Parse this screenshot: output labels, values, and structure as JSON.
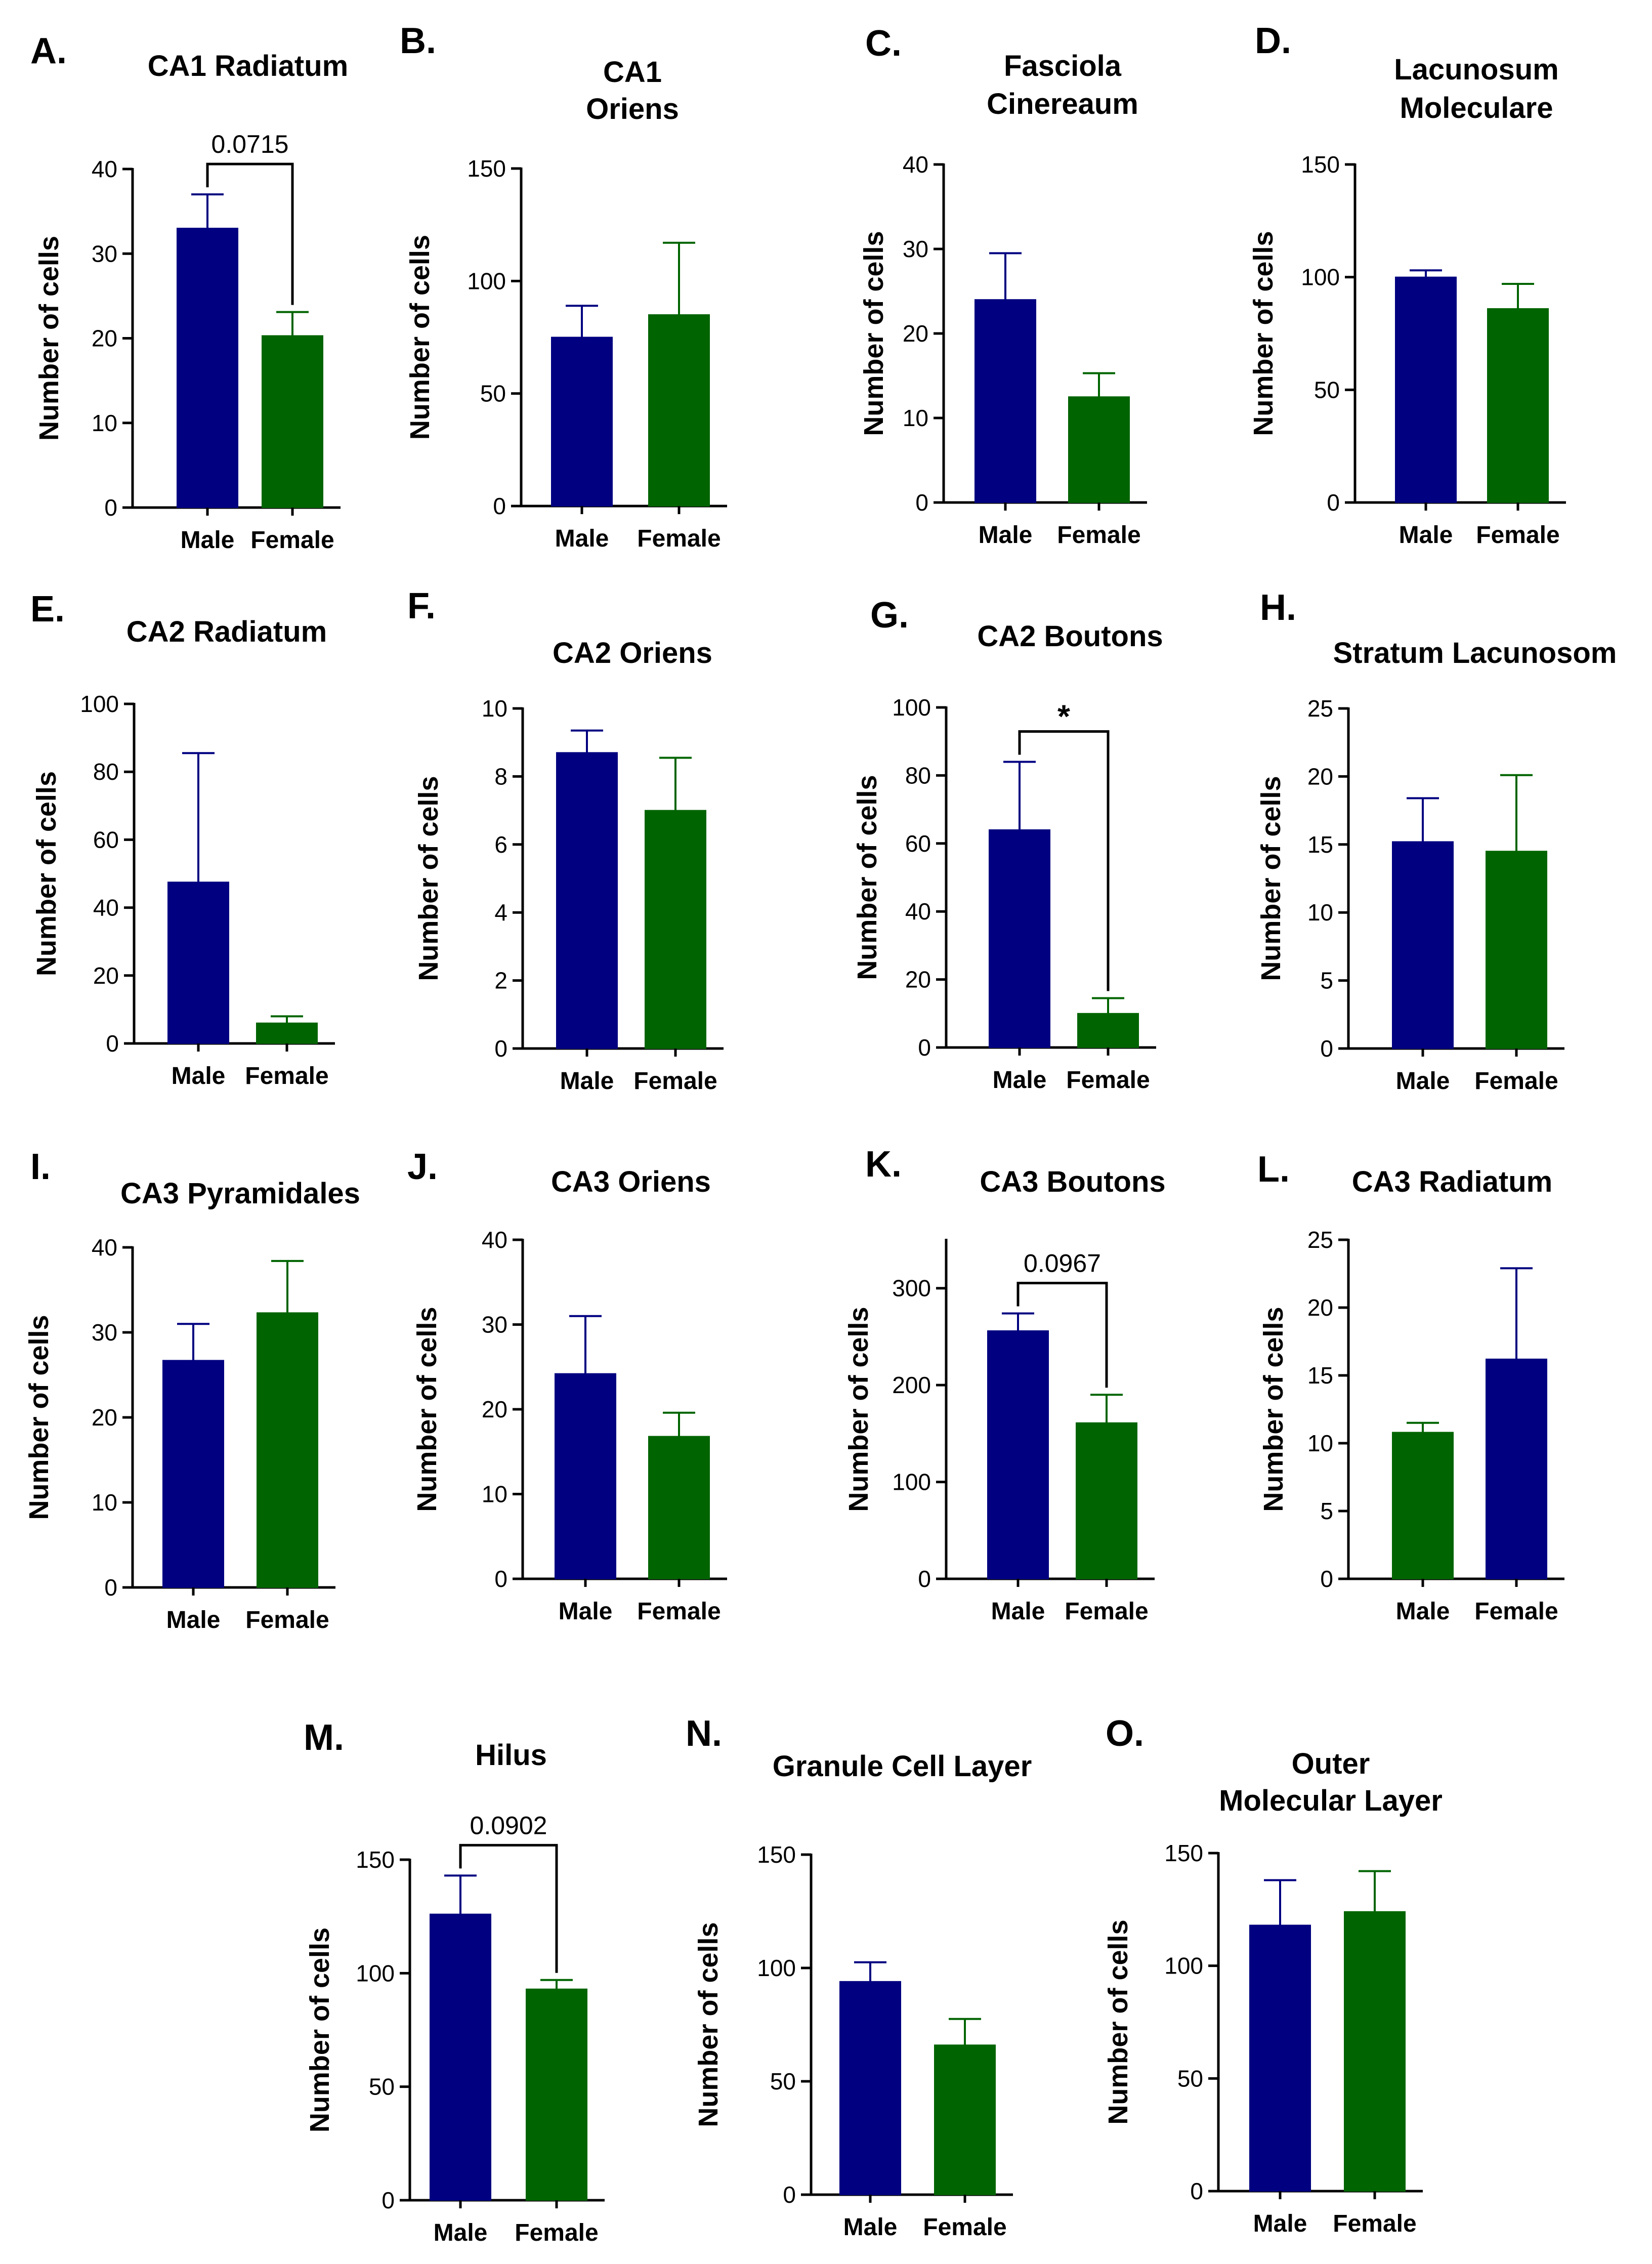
{
  "colors": {
    "male": "#000080",
    "female": "#006400",
    "axis": "#000000"
  },
  "chart_data": [
    {
      "panel": "A.",
      "title": [
        "CA1 Radiatum"
      ],
      "type": "bar",
      "ylabel": "Number of cells",
      "categories": [
        "Male",
        "Female"
      ],
      "values": [
        33,
        20.3
      ],
      "errors": [
        4,
        2.8
      ],
      "bar_colors": [
        "male",
        "female"
      ],
      "ylim": [
        0,
        40
      ],
      "yticks": [
        0,
        10,
        20,
        30,
        40
      ],
      "bracket": "0.0715"
    },
    {
      "panel": "B.",
      "title": [
        "CA1",
        "Oriens"
      ],
      "type": "bar",
      "ylabel": "Number of cells",
      "categories": [
        "Male",
        "Female"
      ],
      "values": [
        75,
        85
      ],
      "errors": [
        14,
        32
      ],
      "bar_colors": [
        "male",
        "female"
      ],
      "ylim": [
        0,
        150
      ],
      "yticks": [
        0,
        50,
        100,
        150
      ]
    },
    {
      "panel": "C.",
      "title": [
        "Fasciola",
        "Cinereaum"
      ],
      "type": "bar",
      "ylabel": "Number of cells",
      "categories": [
        "Male",
        "Female"
      ],
      "values": [
        24,
        12.5
      ],
      "errors": [
        5.5,
        2.8
      ],
      "bar_colors": [
        "male",
        "female"
      ],
      "ylim": [
        0,
        40
      ],
      "yticks": [
        0,
        10,
        20,
        30,
        40
      ]
    },
    {
      "panel": "D.",
      "title": [
        "Lacunosum",
        "Moleculare"
      ],
      "type": "bar",
      "ylabel": "Number of cells",
      "categories": [
        "Male",
        "Female"
      ],
      "values": [
        100,
        86
      ],
      "errors": [
        3,
        11
      ],
      "bar_colors": [
        "male",
        "female"
      ],
      "ylim": [
        0,
        150
      ],
      "yticks": [
        0,
        50,
        100,
        150
      ]
    },
    {
      "panel": "E.",
      "title": [
        "CA2 Radiatum"
      ],
      "type": "bar",
      "ylabel": "Number of cells",
      "categories": [
        "Male",
        "Female"
      ],
      "values": [
        47.5,
        6
      ],
      "errors": [
        38,
        2
      ],
      "bar_colors": [
        "male",
        "female"
      ],
      "ylim": [
        0,
        100
      ],
      "yticks": [
        0,
        20,
        40,
        60,
        80,
        100
      ]
    },
    {
      "panel": "F.",
      "title": [
        "CA2 Oriens"
      ],
      "type": "bar",
      "ylabel": "Number of cells",
      "categories": [
        "Male",
        "Female"
      ],
      "values": [
        8.7,
        7
      ],
      "errors": [
        0.65,
        1.55
      ],
      "bar_colors": [
        "male",
        "female"
      ],
      "ylim": [
        0,
        10
      ],
      "yticks": [
        0,
        2,
        4,
        6,
        8,
        10
      ]
    },
    {
      "panel": "G.",
      "title": [
        "CA2 Boutons"
      ],
      "type": "bar",
      "ylabel": "Number of cells",
      "categories": [
        "Male",
        "Female"
      ],
      "values": [
        64,
        10
      ],
      "errors": [
        20,
        4.5
      ],
      "bar_colors": [
        "male",
        "female"
      ],
      "ylim": [
        0,
        100
      ],
      "yticks": [
        0,
        20,
        40,
        60,
        80,
        100
      ],
      "bracket": "*"
    },
    {
      "panel": "H.",
      "title": [
        "Stratum Lacunosom"
      ],
      "type": "bar",
      "ylabel": "Number of cells",
      "categories": [
        "Male",
        "Female"
      ],
      "values": [
        15.2,
        14.5
      ],
      "errors": [
        3.2,
        5.6
      ],
      "bar_colors": [
        "male",
        "female"
      ],
      "ylim": [
        0,
        25
      ],
      "yticks": [
        0,
        5,
        10,
        15,
        20,
        25
      ]
    },
    {
      "panel": "I.",
      "title": [
        "CA3 Pyramidales"
      ],
      "type": "bar",
      "ylabel": "Number of cells",
      "categories": [
        "Male",
        "Female"
      ],
      "values": [
        26.7,
        32.3
      ],
      "errors": [
        4.3,
        6.1
      ],
      "bar_colors": [
        "male",
        "female"
      ],
      "ylim": [
        0,
        40
      ],
      "yticks": [
        0,
        10,
        20,
        30,
        40
      ]
    },
    {
      "panel": "J.",
      "title": [
        "CA3 Oriens"
      ],
      "type": "bar",
      "ylabel": "Number of cells",
      "categories": [
        "Male",
        "Female"
      ],
      "values": [
        24.2,
        16.8
      ],
      "errors": [
        6.8,
        2.8
      ],
      "bar_colors": [
        "male",
        "female"
      ],
      "ylim": [
        0,
        40
      ],
      "yticks": [
        0,
        10,
        20,
        30,
        40
      ]
    },
    {
      "panel": "K.",
      "title": [
        "CA3 Boutons"
      ],
      "type": "bar",
      "ylabel": "Number of cells",
      "categories": [
        "Male",
        "Female"
      ],
      "values": [
        256,
        161
      ],
      "errors": [
        18,
        29
      ],
      "bar_colors": [
        "male",
        "female"
      ],
      "ylim": [
        0,
        350
      ],
      "yticks": [
        0,
        100,
        200,
        300
      ],
      "bracket": "0.0967"
    },
    {
      "panel": "L.",
      "title": [
        "CA3 Radiatum"
      ],
      "type": "bar",
      "ylabel": "Number of cells",
      "categories": [
        "Male",
        "Female"
      ],
      "values": [
        10.8,
        16.2
      ],
      "errors": [
        0.7,
        6.7
      ],
      "bar_colors": [
        "female",
        "male"
      ],
      "ylim": [
        0,
        25
      ],
      "yticks": [
        0,
        5,
        10,
        15,
        20,
        25
      ]
    },
    {
      "panel": "M.",
      "title": [
        "Hilus"
      ],
      "type": "bar",
      "ylabel": "Number of cells",
      "categories": [
        "Male",
        "Female"
      ],
      "values": [
        126,
        93
      ],
      "errors": [
        17,
        4
      ],
      "bar_colors": [
        "male",
        "female"
      ],
      "ylim": [
        0,
        150
      ],
      "yticks": [
        0,
        50,
        100,
        150
      ],
      "bracket": "0.0902"
    },
    {
      "panel": "N.",
      "title": [
        "Granule Cell Layer"
      ],
      "type": "bar",
      "ylabel": "Number of cells",
      "categories": [
        "Male",
        "Female"
      ],
      "values": [
        94,
        66
      ],
      "errors": [
        8.5,
        11.5
      ],
      "bar_colors": [
        "male",
        "female"
      ],
      "ylim": [
        0,
        150
      ],
      "yticks": [
        0,
        50,
        100,
        150
      ]
    },
    {
      "panel": "O.",
      "title": [
        "Outer",
        "Molecular Layer"
      ],
      "type": "bar",
      "ylabel": "Number of cells",
      "categories": [
        "Male",
        "Female"
      ],
      "values": [
        118,
        124
      ],
      "errors": [
        20,
        18
      ],
      "bar_colors": [
        "male",
        "female"
      ],
      "ylim": [
        0,
        150
      ],
      "yticks": [
        0,
        50,
        100,
        150
      ]
    }
  ]
}
